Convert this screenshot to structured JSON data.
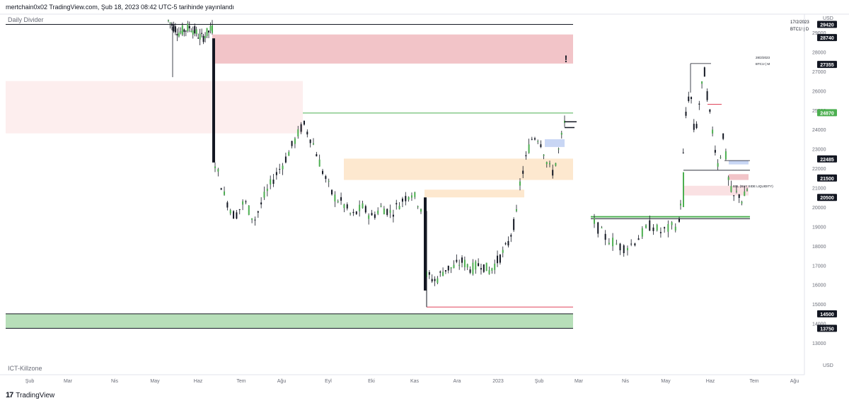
{
  "header": {
    "published": "mertchain0x02 TradingView.com, Şub 18, 2023 08:42 UTC-5 tarihinde yayınlandı"
  },
  "panes": {
    "top_label": "Daily Divider",
    "bottom_label": "ICT-Killzone"
  },
  "footer": {
    "brand": "TradingView"
  },
  "chart_data": {
    "type": "candlestick",
    "symbol": "BTC1! | D",
    "date_label": "17/2/2023",
    "currency": "USD",
    "yaxis": {
      "ticks": [
        13000,
        14000,
        15000,
        16000,
        17000,
        18000,
        19000,
        20000,
        21000,
        22000,
        23000,
        24000,
        25000,
        26000,
        27000,
        28000,
        29000
      ]
    },
    "xaxis": {
      "labels": [
        "Şub",
        "Mar",
        "Nis",
        "May",
        "Haz",
        "Tem",
        "Ağu",
        "Eyl",
        "Eki",
        "Kas",
        "Ara",
        "2023",
        "Şub",
        "Mar",
        "Nis",
        "May",
        "Haz",
        "Tem",
        "Ağu"
      ]
    },
    "price_labels": [
      {
        "value": "29420",
        "style": "black"
      },
      {
        "value": "28740",
        "style": "black"
      },
      {
        "value": "27355",
        "style": "black"
      },
      {
        "value": "24870",
        "style": "green"
      },
      {
        "value": "22485",
        "style": "black"
      },
      {
        "value": "21500",
        "style": "black"
      },
      {
        "value": "20500",
        "style": "black"
      },
      {
        "value": "14500",
        "style": "black"
      },
      {
        "value": "13750",
        "style": "black"
      }
    ],
    "inset": {
      "date_label": "28/2/2023",
      "symbol": "BTC1! | M",
      "annotation": "BSL (BUY SIDE LIQUIDITY)"
    },
    "zones": [
      {
        "type": "supply",
        "from": 27400,
        "to": 28900,
        "color": "#f2c4c8"
      },
      {
        "type": "supply",
        "from": 23800,
        "to": 26500,
        "color": "#fdeeee"
      },
      {
        "type": "fvg",
        "from": 21400,
        "to": 22500,
        "color": "#fde8cf"
      },
      {
        "type": "fvg",
        "from": 20500,
        "to": 20900,
        "color": "#fde8cf"
      },
      {
        "type": "demand",
        "from": 13750,
        "to": 14500,
        "color": "#b7dfb9"
      }
    ],
    "marker": "!",
    "close_approx": {
      "main": 24200,
      "inset": 20500
    }
  }
}
